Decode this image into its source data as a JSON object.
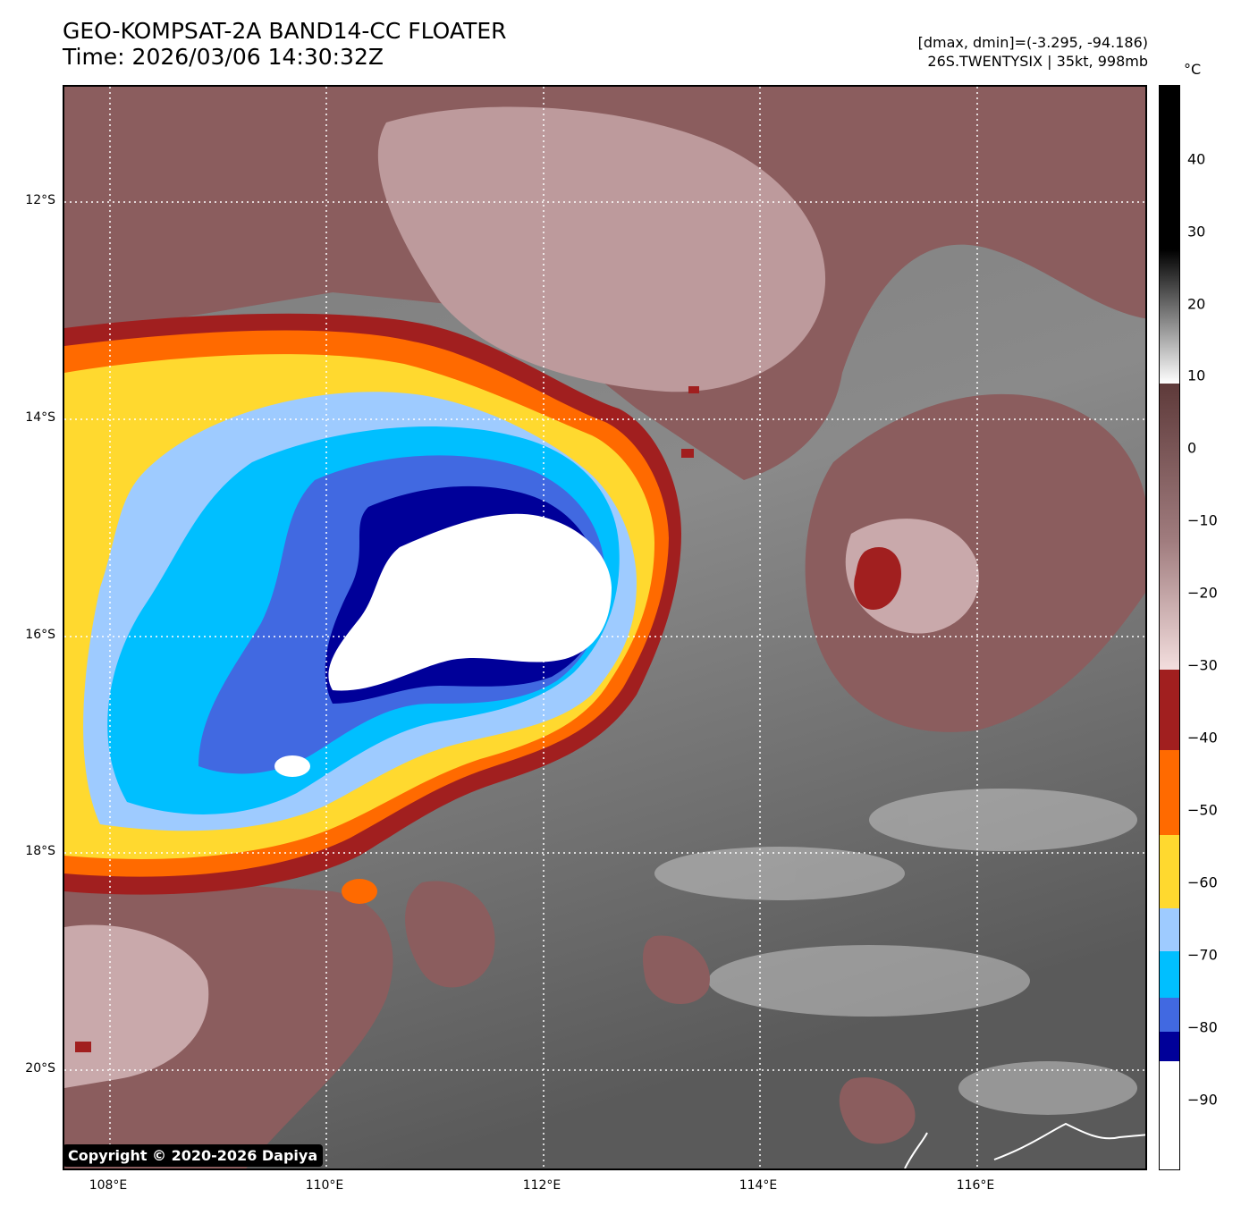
{
  "header": {
    "title_line1": "GEO-KOMPSAT-2A BAND14-CC FLOATER",
    "title_line2": "Time: 2026/03/06 14:30:32Z",
    "meta_line1": "[dmax, dmin]=(-3.295, -94.186)",
    "meta_line2": "26S.TWENTYSIX | 35kt, 998mb"
  },
  "colorbar": {
    "unit": "°C",
    "ticks": [
      "40",
      "30",
      "20",
      "10",
      "0",
      "−10",
      "−20",
      "−30",
      "−40",
      "−50",
      "−60",
      "−70",
      "−80",
      "−90"
    ]
  },
  "map": {
    "lat_labels": [
      "12°S",
      "14°S",
      "16°S",
      "18°S",
      "20°S"
    ],
    "lon_labels": [
      "108°E",
      "110°E",
      "112°E",
      "114°E",
      "116°E"
    ]
  },
  "copyright": "Copyright © 2020-2026 Dapiya",
  "colors": {
    "grey_dark": "#585858",
    "grey_light": "#d8d8d8",
    "mauve": "#8b5d5e",
    "mauve_light": "#d6b7b9",
    "red": "#a11f1f",
    "orange": "#ff6a00",
    "yellow": "#ffd92f",
    "light_blue": "#9ecbff",
    "cyan": "#00bfff",
    "royal_blue": "#4169e1",
    "navy": "#000099",
    "white": "#ffffff"
  }
}
